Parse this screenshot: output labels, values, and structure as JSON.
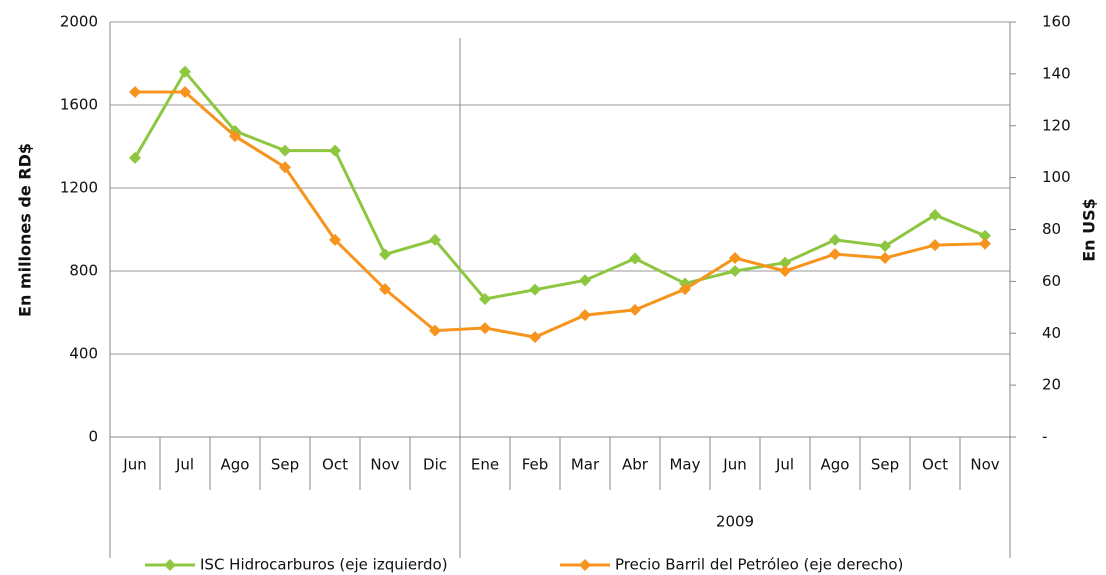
{
  "chart_data": {
    "type": "line",
    "categories": [
      "Jun",
      "Jul",
      "Ago",
      "Sep",
      "Oct",
      "Nov",
      "Dic",
      "Ene",
      "Feb",
      "Mar",
      "Abr",
      "May",
      "Jun",
      "Jul",
      "Ago",
      "Sep",
      "Oct",
      "Nov"
    ],
    "groups": [
      {
        "label": "2009",
        "from": 7,
        "to": 17
      }
    ],
    "y_label": "En millones de RD$",
    "y2_label": "En US$",
    "ylim": [
      0,
      2000
    ],
    "yticks": [
      0,
      400,
      800,
      1200,
      1600,
      2000
    ],
    "y2lim": [
      0,
      160
    ],
    "y2ticks": [
      {
        "value": 0,
        "label": "-"
      },
      20,
      40,
      60,
      80,
      100,
      120,
      140,
      160
    ],
    "grid": true,
    "legend": "bottom",
    "series": [
      {
        "name": "ISC Hidrocarburos (eje izquierdo)",
        "color": "#8dc63f",
        "values": [
          1345,
          1760,
          1475,
          1380,
          1380,
          880,
          950,
          665,
          710,
          755,
          860,
          740,
          800,
          840,
          950,
          920,
          1070,
          970
        ]
      },
      {
        "name": "Precio Barril del Petróleo (eje derecho)",
        "color": "#f7941d",
        "axis": "y2",
        "values": [
          133,
          133,
          116,
          104,
          76,
          57,
          41,
          42,
          38.5,
          47,
          49,
          57,
          69,
          64,
          70.5,
          69,
          74,
          74.5
        ]
      }
    ]
  }
}
